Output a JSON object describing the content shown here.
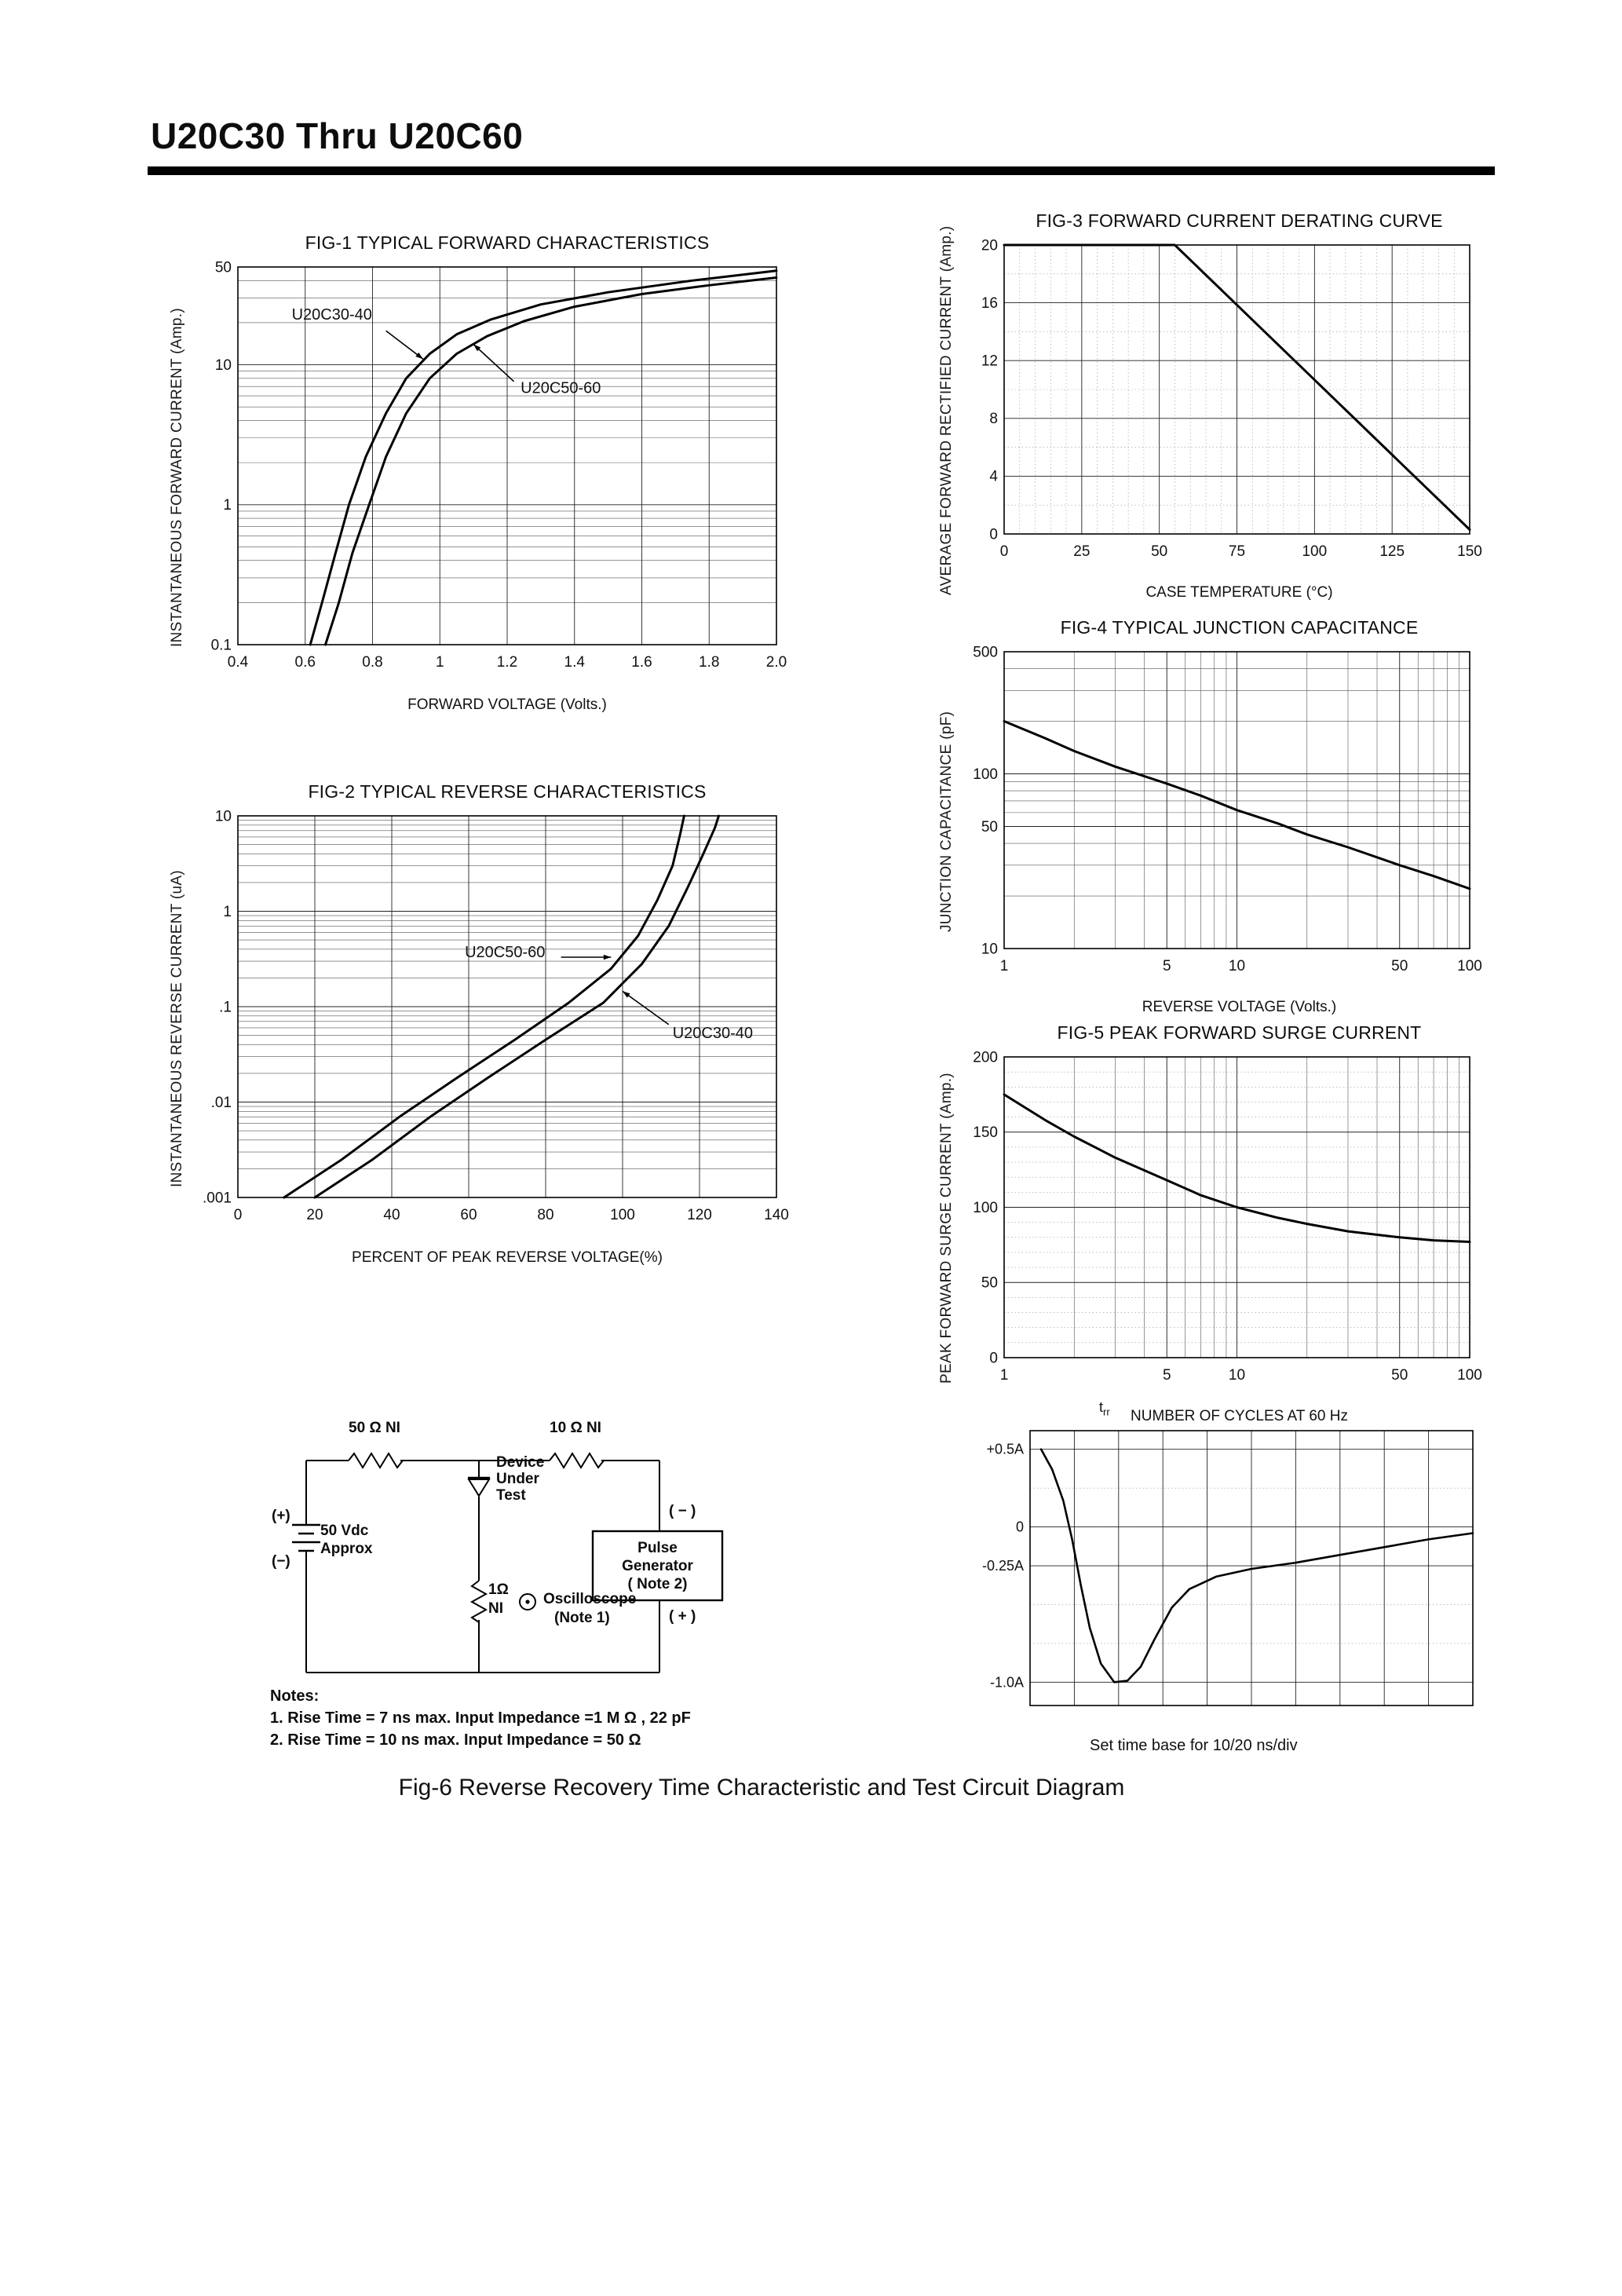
{
  "header": {
    "title": "U20C30 Thru U20C60"
  },
  "chart_data": [
    {
      "id": "fig1",
      "type": "line",
      "title": "FIG-1 TYPICAL FORWARD CHARACTERISTICS",
      "xlabel": "FORWARD VOLTAGE (Volts.)",
      "ylabel": "INSTANTANEOUS FORWARD CURRENT (Amp.)",
      "xscale": "linear",
      "yscale": "log",
      "xlim": [
        0.4,
        2.0
      ],
      "ylim": [
        0.1,
        50
      ],
      "xticks": [
        0.4,
        0.6,
        0.8,
        1.0,
        1.2,
        1.4,
        1.6,
        1.8,
        2.0
      ],
      "xtick_labels": [
        "0.4",
        "0.6",
        "0.8",
        "1",
        "1.2",
        "1.4",
        "1.6",
        "1.8",
        "2.0"
      ],
      "yticks": [
        50,
        10,
        1,
        0.1
      ],
      "ytick_labels": [
        "50",
        "10",
        "1",
        "0.1"
      ],
      "grid": true,
      "margins": {
        "l": 56,
        "r": 16,
        "t": 10,
        "b": 42
      },
      "tick_font": 19,
      "lw": 3,
      "series": [
        {
          "name": "U20C30-40",
          "x": [
            0.615,
            0.65,
            0.69,
            0.73,
            0.78,
            0.84,
            0.9,
            0.97,
            1.05,
            1.15,
            1.3,
            1.5,
            1.75,
            2.0
          ],
          "y": [
            0.1,
            0.2,
            0.45,
            1.0,
            2.2,
            4.5,
            8,
            12,
            16.5,
            21,
            27,
            33,
            40,
            47
          ]
        },
        {
          "name": "U20C50-60",
          "x": [
            0.66,
            0.7,
            0.74,
            0.79,
            0.84,
            0.9,
            0.97,
            1.05,
            1.14,
            1.25,
            1.4,
            1.6,
            1.8,
            2.0
          ],
          "y": [
            0.1,
            0.2,
            0.45,
            1.0,
            2.2,
            4.5,
            8,
            12,
            16,
            20.5,
            26,
            32,
            37,
            42
          ]
        }
      ],
      "annotations": [
        {
          "text": "U20C30-40",
          "tx": 0.56,
          "ty": 21,
          "anchor": "start",
          "sx": 0.84,
          "sy": 17.5,
          "ax": 0.95,
          "ay": 11
        },
        {
          "text": "U20C50-60",
          "tx": 1.24,
          "ty": 6.3,
          "anchor": "start",
          "sx": 1.22,
          "sy": 7.6,
          "ax": 1.1,
          "ay": 14
        }
      ]
    },
    {
      "id": "fig2",
      "type": "line",
      "title": "FIG-2 TYPICAL REVERSE CHARACTERISTICS",
      "xlabel": "PERCENT OF PEAK REVERSE VOLTAGE(%)",
      "ylabel": "INSTANTANEOUS REVERSE CURRENT (uA)",
      "xscale": "linear",
      "yscale": "log",
      "xlim": [
        0,
        140
      ],
      "ylim": [
        0.001,
        10
      ],
      "xticks": [
        0,
        20,
        40,
        60,
        80,
        100,
        120,
        140
      ],
      "yticks": [
        10,
        1,
        0.1,
        0.01,
        0.001
      ],
      "ytick_labels": [
        "10",
        "1",
        ".1",
        ".01",
        ".001"
      ],
      "grid": true,
      "margins": {
        "l": 56,
        "r": 16,
        "t": 10,
        "b": 42
      },
      "tick_font": 19,
      "lw": 3,
      "series": [
        {
          "name": "U20C50-60",
          "x": [
            12,
            27,
            42,
            57,
            72,
            86,
            97,
            104,
            109,
            113,
            115,
            116
          ],
          "y": [
            0.001,
            0.0025,
            0.007,
            0.018,
            0.045,
            0.11,
            0.25,
            0.55,
            1.3,
            3,
            6.5,
            10
          ]
        },
        {
          "name": "U20C30-40",
          "x": [
            20,
            35,
            50,
            65,
            80,
            95,
            105,
            112,
            117,
            121,
            124,
            125
          ],
          "y": [
            0.001,
            0.0025,
            0.007,
            0.018,
            0.045,
            0.11,
            0.28,
            0.7,
            1.8,
            4,
            7.5,
            10
          ]
        }
      ],
      "annotations": [
        {
          "text": "U20C50-60",
          "tx": 59,
          "ty": 0.33,
          "anchor": "start",
          "sx": 84,
          "sy": 0.33,
          "ax": 97,
          "ay": 0.33
        },
        {
          "text": "U20C30-40",
          "tx": 113,
          "ty": 0.047,
          "anchor": "start",
          "sx": 112,
          "sy": 0.065,
          "ax": 100,
          "ay": 0.145
        }
      ]
    },
    {
      "id": "fig3",
      "type": "line",
      "title": "FIG-3 FORWARD CURRENT DERATING CURVE",
      "xlabel": "CASE TEMPERATURE (°C)",
      "ylabel": "AVERAGE FORWARD RECTIFIED CURRENT (Amp.)",
      "xscale": "linear",
      "yscale": "linear",
      "xlim": [
        0,
        150
      ],
      "ylim": [
        0,
        20
      ],
      "xticks": [
        0,
        25,
        50,
        75,
        100,
        125,
        150
      ],
      "yticks": [
        0,
        4,
        8,
        12,
        16,
        20
      ],
      "xminor_step": 5,
      "yminor_step": 2,
      "grid": true,
      "margins": {
        "l": 52,
        "r": 18,
        "t": 10,
        "b": 40
      },
      "tick_font": 19,
      "lw": 3,
      "series": [
        {
          "name": "derating",
          "x": [
            0,
            55,
            150
          ],
          "y": [
            20,
            20,
            0.3
          ]
        }
      ]
    },
    {
      "id": "fig4",
      "type": "line",
      "title": "FIG-4 TYPICAL JUNCTION CAPACITANCE",
      "xlabel": "REVERSE VOLTAGE (Volts.)",
      "ylabel": "JUNCTION CAPACITANCE (pF)",
      "xscale": "log",
      "yscale": "log",
      "xlim": [
        1,
        100
      ],
      "ylim": [
        10,
        500
      ],
      "xticks": [
        1,
        5,
        10,
        50,
        100
      ],
      "yticks": [
        500,
        100,
        50,
        10
      ],
      "ytick_labels": [
        "500",
        "100",
        "50",
        "10"
      ],
      "grid": true,
      "margins": {
        "l": 52,
        "r": 18,
        "t": 10,
        "b": 40
      },
      "tick_font": 19,
      "lw": 3,
      "series": [
        {
          "name": "junction-capacitance",
          "x": [
            1,
            1.5,
            2,
            3,
            5,
            7,
            10,
            15,
            20,
            30,
            50,
            70,
            100
          ],
          "y": [
            200,
            160,
            135,
            110,
            88,
            75,
            62,
            52,
            45,
            38,
            30,
            26,
            22
          ]
        }
      ]
    },
    {
      "id": "fig5",
      "type": "line",
      "title": "FIG-5 PEAK FORWARD SURGE CURRENT",
      "xlabel": "NUMBER OF CYCLES AT 60 Hz",
      "ylabel": "PEAK FORWARD SURGE CURRENT (Amp.)",
      "xscale": "log",
      "yscale": "linear",
      "xlim": [
        1,
        100
      ],
      "ylim": [
        0,
        200
      ],
      "xticks": [
        1,
        5,
        10,
        50,
        100
      ],
      "yticks": [
        0,
        50,
        100,
        150,
        200
      ],
      "yminor_step": 10,
      "grid": true,
      "margins": {
        "l": 52,
        "r": 18,
        "t": 10,
        "b": 40
      },
      "tick_font": 19,
      "lw": 3,
      "series": [
        {
          "name": "surge-current",
          "x": [
            1,
            1.5,
            2,
            3,
            5,
            7,
            10,
            15,
            20,
            30,
            50,
            70,
            100
          ],
          "y": [
            175,
            158,
            147,
            133,
            118,
            108,
            100,
            93,
            89,
            84,
            80,
            78,
            77
          ]
        }
      ]
    },
    {
      "id": "fig6wave",
      "type": "line",
      "title": "",
      "xlabel": "",
      "ylabel": "",
      "xscale": "linear",
      "yscale": "linear",
      "xlim": [
        0,
        10
      ],
      "ylim": [
        -1.15,
        0.62
      ],
      "xticks": [
        1,
        2,
        3,
        4,
        5,
        6,
        7,
        8,
        9
      ],
      "xtick_labels": [],
      "yticks": [
        0.5,
        0,
        -0.25,
        -1.0
      ],
      "ytick_labels": [
        "+0.5A",
        "0",
        "-0.25A",
        "-1.0A"
      ],
      "yminor_step": 0.25,
      "grid": true,
      "margins": {
        "l": 64,
        "r": 12,
        "t": 16,
        "b": 14
      },
      "tick_font": 18,
      "lw": 2.6,
      "series": [
        {
          "name": "reverse-recovery-waveform",
          "x": [
            0.25,
            0.5,
            0.75,
            0.95,
            1.15,
            1.35,
            1.6,
            1.9,
            2.2,
            2.5,
            2.8,
            3.2,
            3.6,
            4.2,
            5,
            6,
            7,
            8,
            9,
            10
          ],
          "y": [
            0.5,
            0.37,
            0.17,
            -0.08,
            -0.38,
            -0.65,
            -0.88,
            -1.0,
            -0.99,
            -0.9,
            -0.73,
            -0.52,
            -0.4,
            -0.32,
            -0.27,
            -0.23,
            -0.18,
            -0.13,
            -0.08,
            -0.04
          ]
        }
      ]
    }
  ],
  "circuit": {
    "r1_label": "50 Ω NI",
    "r2_label": "10 Ω NI",
    "dut_label": "Device\nUnder\nTest",
    "battery_plus": "(+)",
    "battery_minus": "(−)",
    "battery_label": "50 Vdc\nApprox",
    "pulse_generator_label": "Pulse\nGenerator\n( Note 2)",
    "pg_minus": "( − )",
    "pg_plus": "( + )",
    "r3_value": "1Ω",
    "r3_ni": "NI",
    "oscilloscope_label": "Oscilloscope",
    "oscilloscope_note": "(Note 1)",
    "notes_title": "Notes:",
    "note1": "1. Rise Time = 7 ns max. Input Impedance =1 M Ω , 22 pF",
    "note2": "2. Rise Time = 10 ns max. Input Impedance = 50 Ω"
  },
  "waveform": {
    "trr_base": "t",
    "trr_sub": "rr",
    "timebase": "Set time base for 10/20 ns/div"
  },
  "caption": "Fig-6 Reverse Recovery Time Characteristic and Test Circuit Diagram"
}
